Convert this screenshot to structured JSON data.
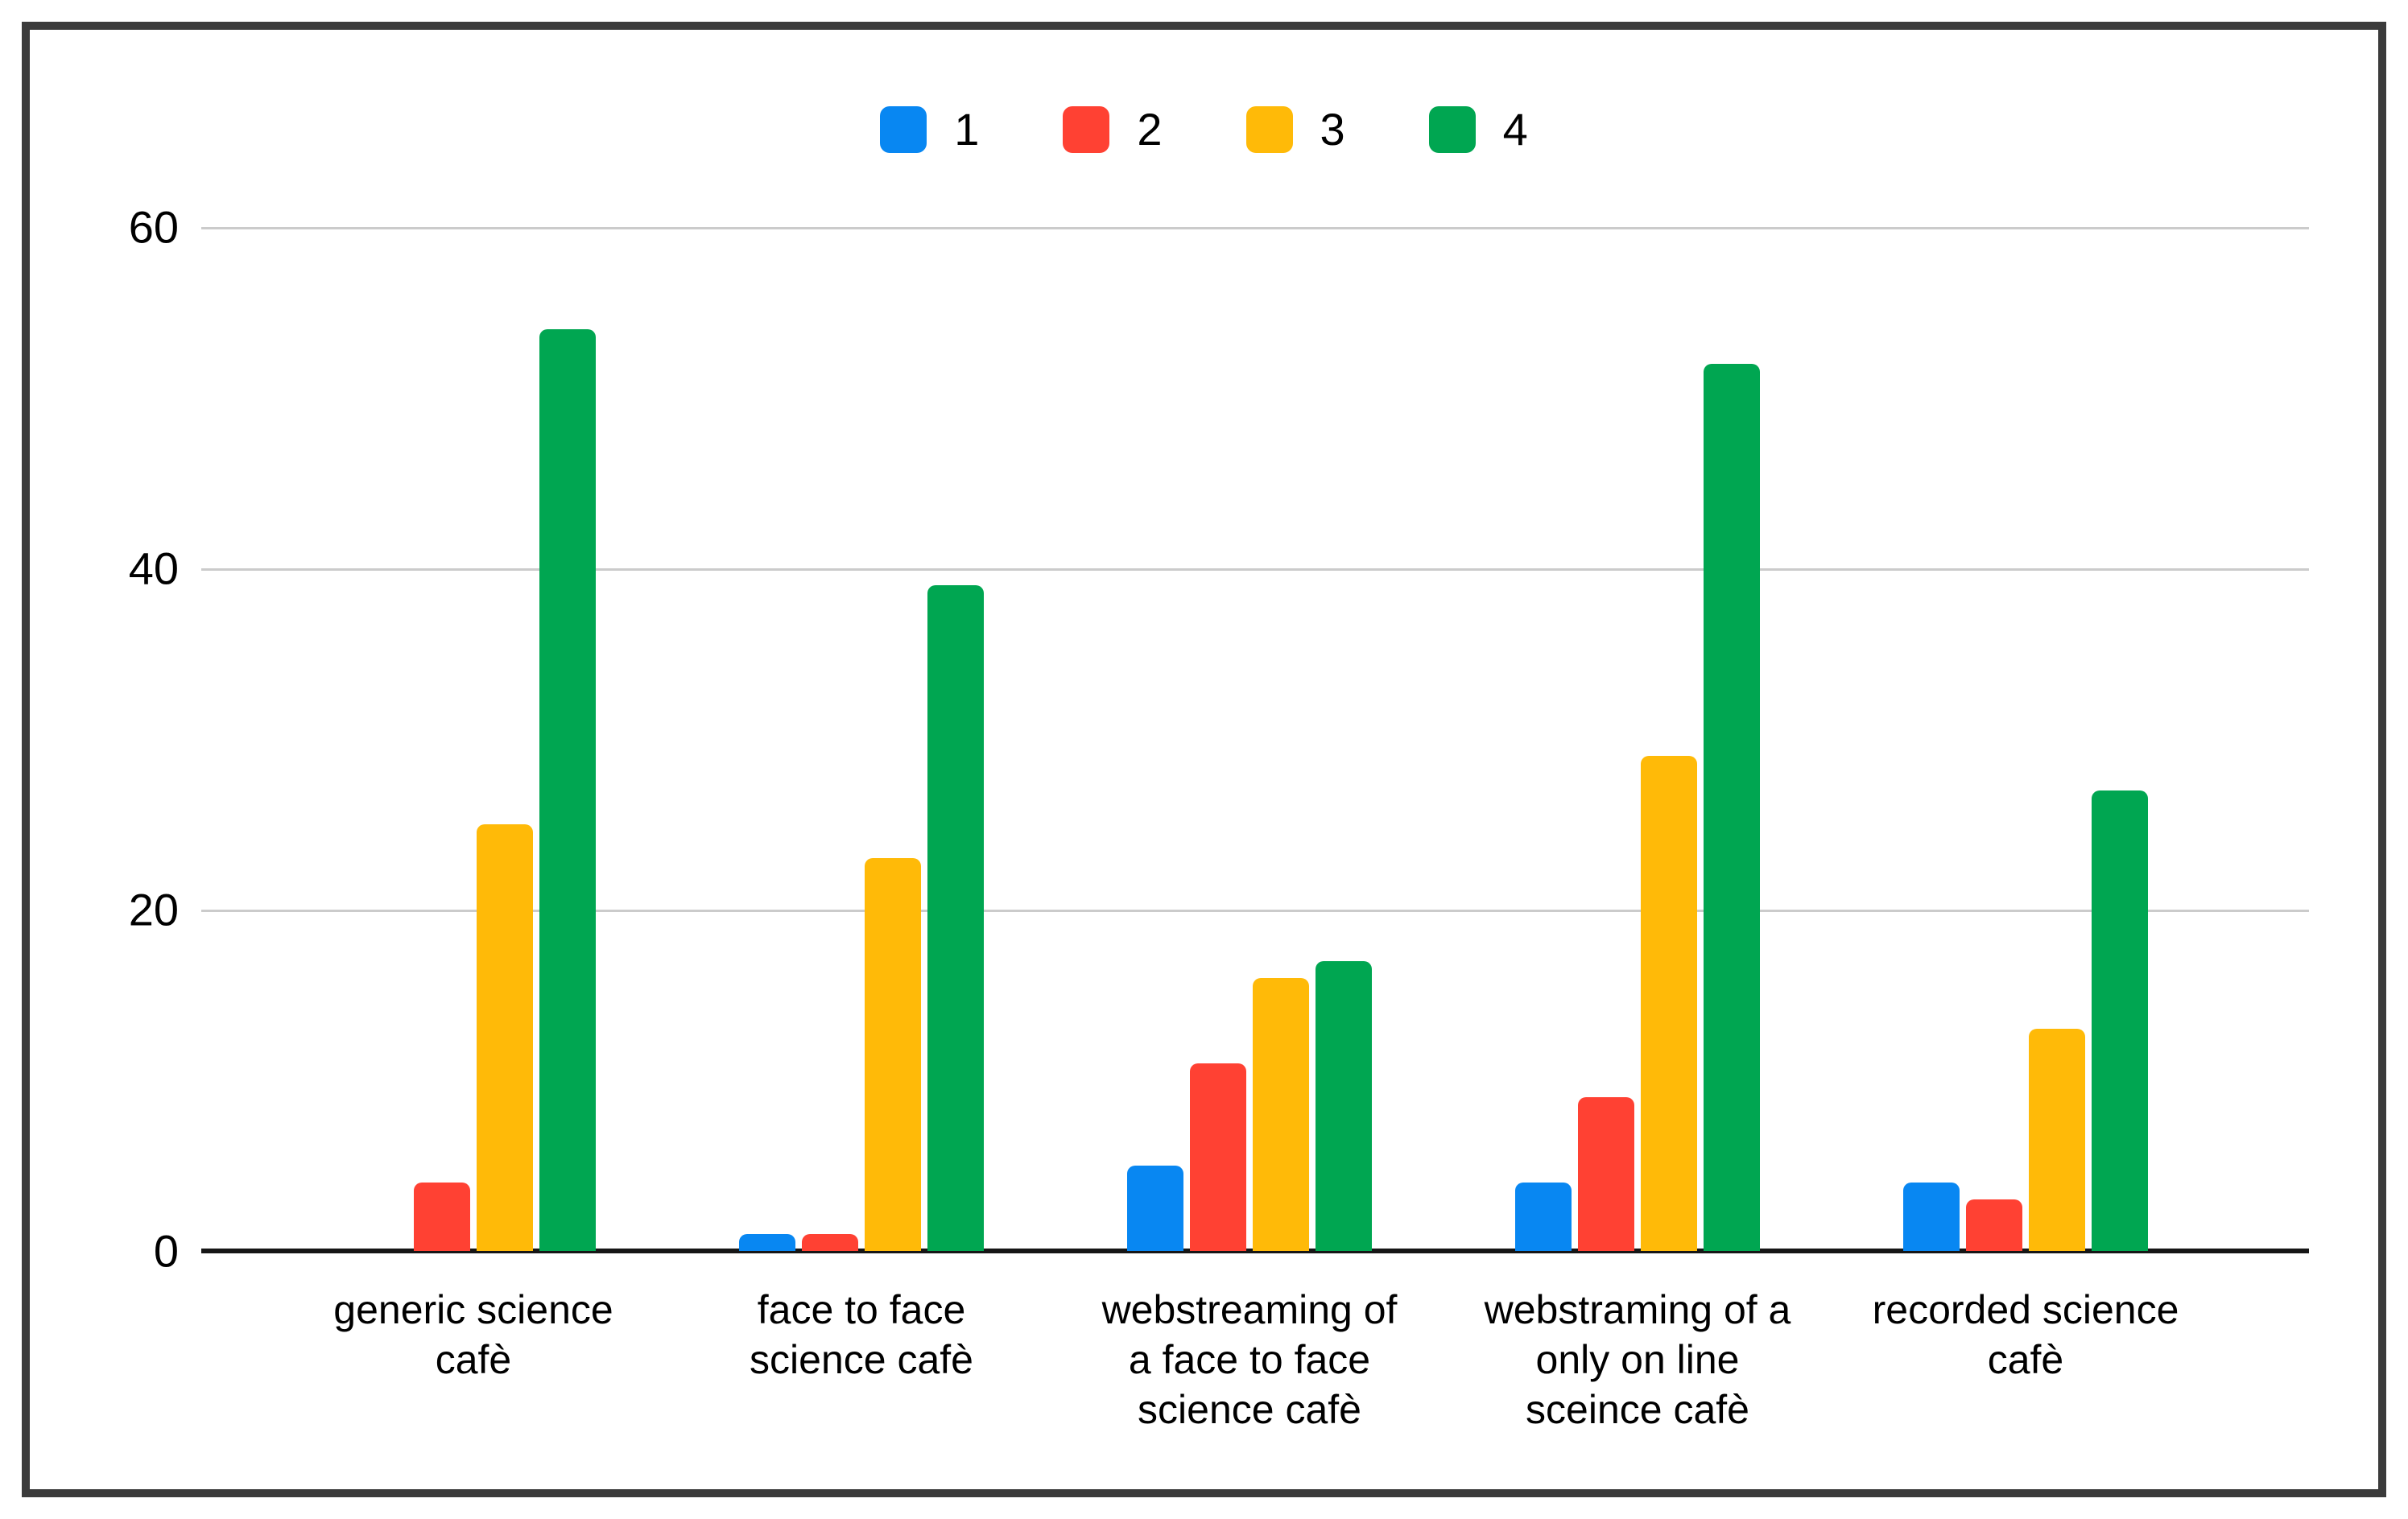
{
  "legend": {
    "items": [
      {
        "label": "1",
        "color": "#0887F2"
      },
      {
        "label": "2",
        "color": "#FF4133"
      },
      {
        "label": "3",
        "color": "#FFBA08"
      },
      {
        "label": "4",
        "color": "#00A651"
      }
    ]
  },
  "y_axis": {
    "ticks": [
      "60",
      "40",
      "20",
      "0"
    ]
  },
  "chart_data": {
    "type": "bar",
    "title": "",
    "xlabel": "",
    "ylabel": "",
    "ylim": [
      0,
      60
    ],
    "grid": true,
    "grid_color": "#CBCBCB",
    "legend_position": "top",
    "categories": [
      "generic science cafè",
      "face to face science cafè",
      "webstreaming of a face to face science cafè",
      "webstraming of a only on line sceince cafè",
      "recorded science cafè"
    ],
    "category_lines": [
      [
        "generic science",
        "cafè"
      ],
      [
        "face to face",
        "science cafè"
      ],
      [
        "webstreaming of",
        "a face to face",
        "science cafè"
      ],
      [
        "webstraming of a",
        "only on line",
        "sceince cafè"
      ],
      [
        "recorded science",
        "cafè"
      ]
    ],
    "series": [
      {
        "name": "1",
        "color": "#0887F2",
        "values": [
          0,
          1,
          5,
          4,
          4
        ]
      },
      {
        "name": "2",
        "color": "#FF4133",
        "values": [
          4,
          1,
          11,
          9,
          3
        ]
      },
      {
        "name": "3",
        "color": "#FFBA08",
        "values": [
          25,
          23,
          16,
          29,
          13
        ]
      },
      {
        "name": "4",
        "color": "#00A651",
        "values": [
          54,
          39,
          17,
          52,
          27
        ]
      }
    ]
  }
}
